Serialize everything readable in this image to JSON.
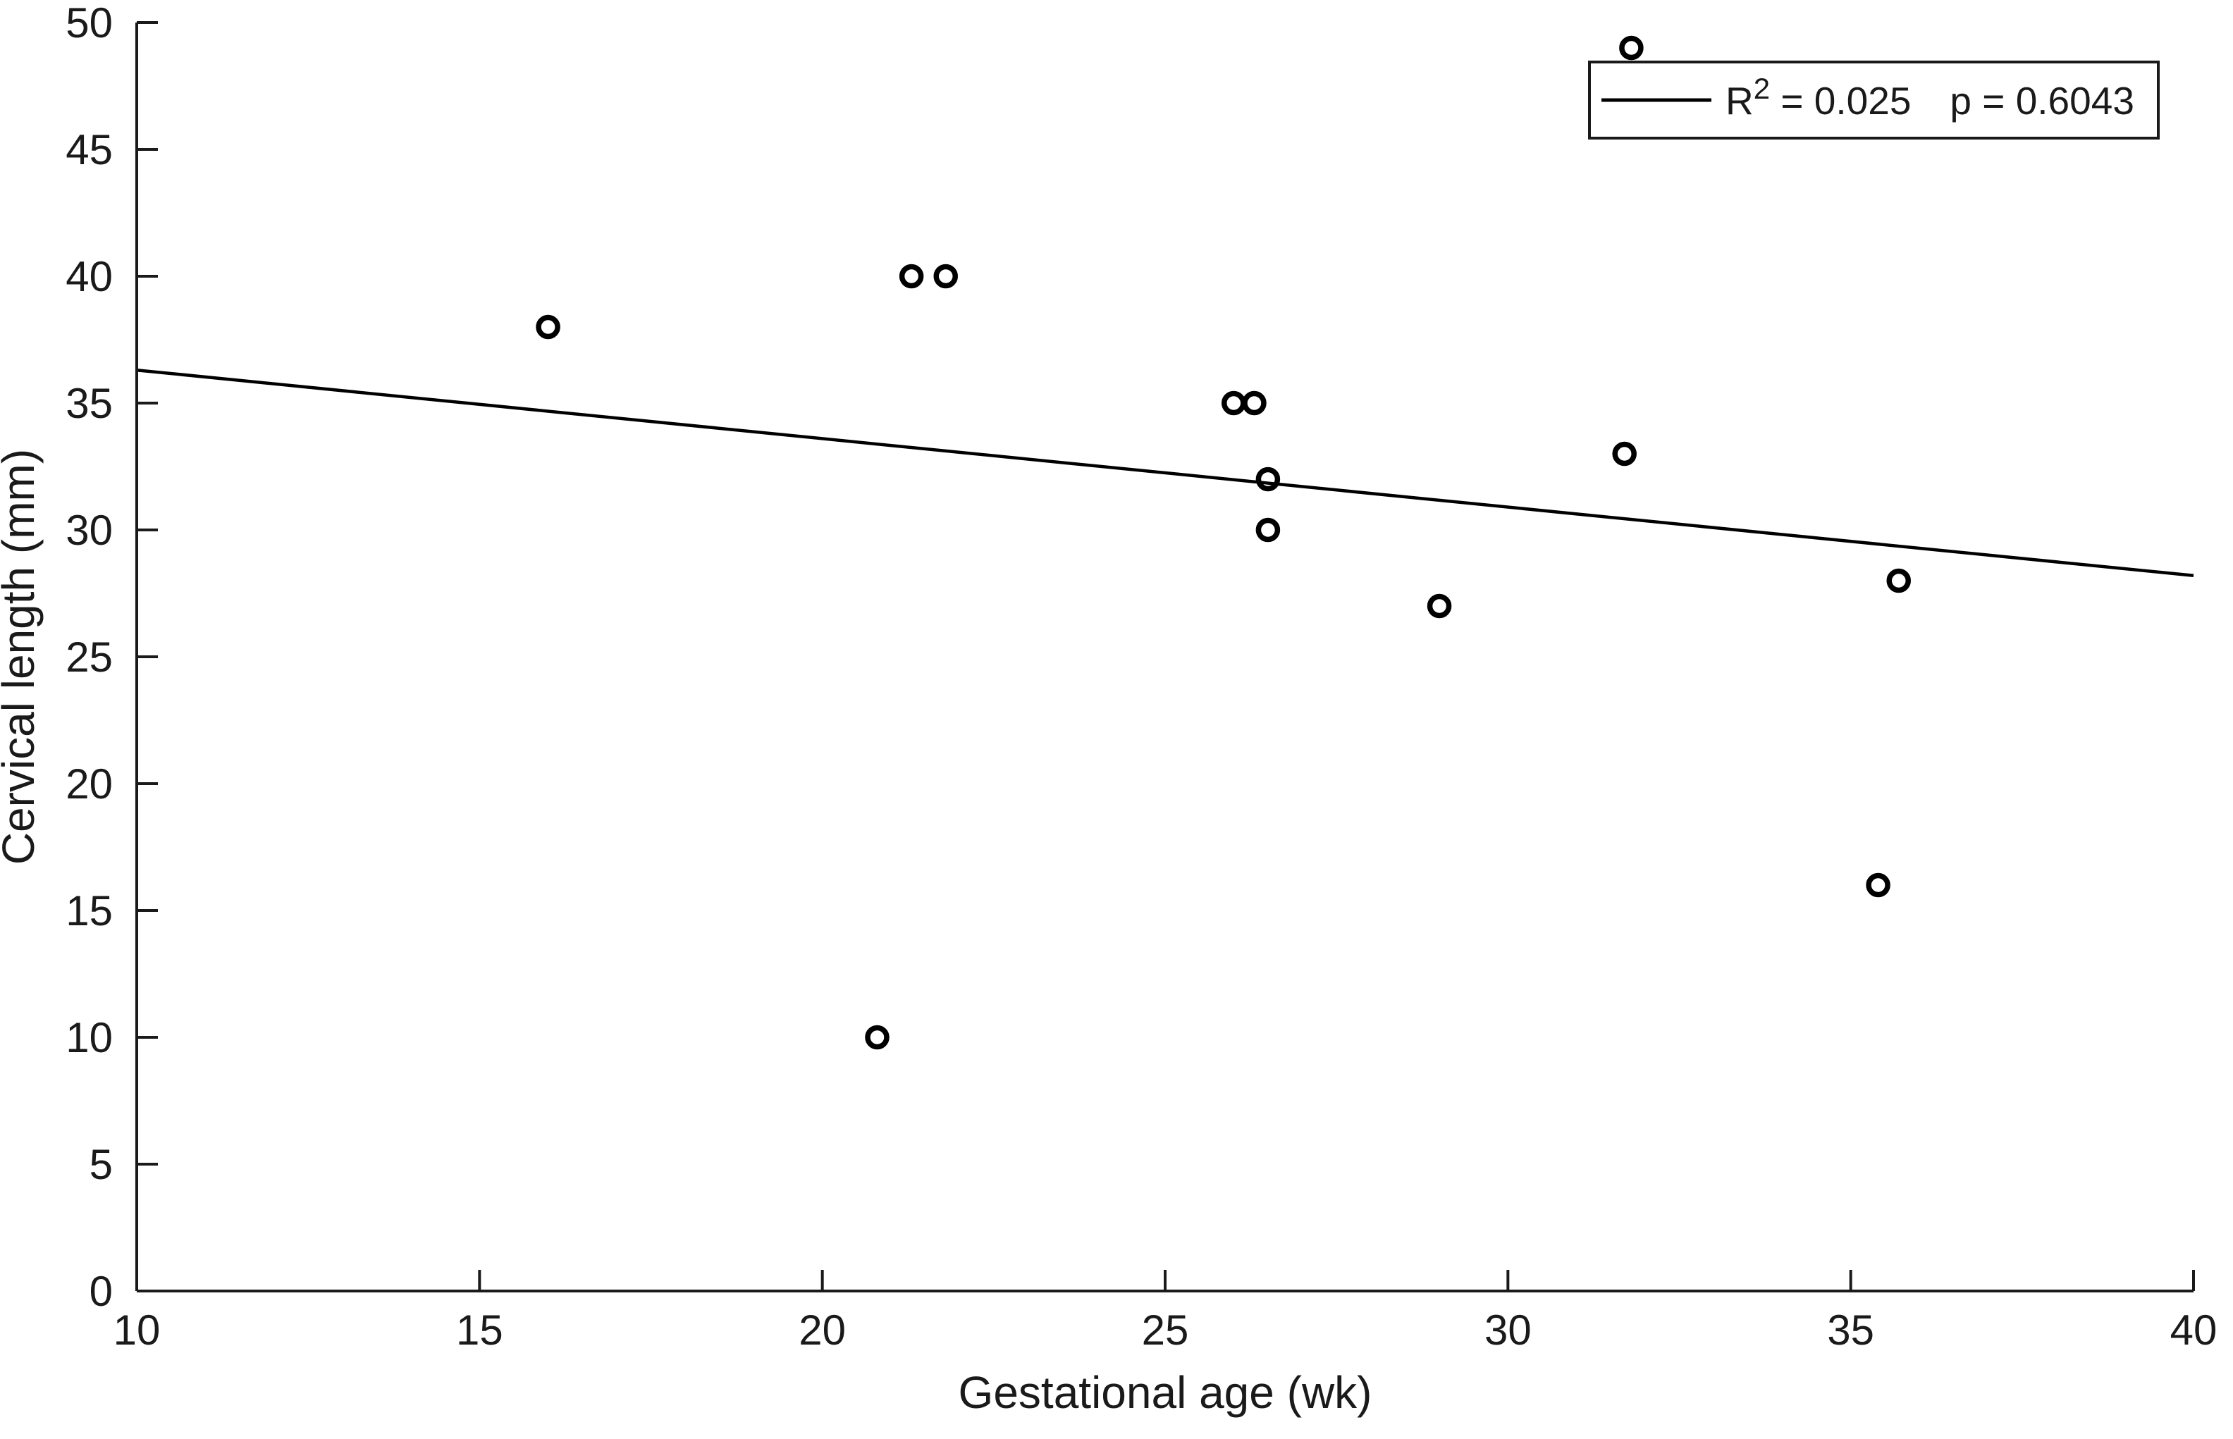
{
  "chart_data": {
    "type": "scatter",
    "title": "",
    "xlabel": "Gestational age (wk)",
    "ylabel": "Cervical length (mm)",
    "xlim": [
      10,
      40
    ],
    "ylim": [
      0,
      50
    ],
    "xticks": [
      10,
      15,
      20,
      25,
      30,
      35,
      40
    ],
    "yticks": [
      0,
      5,
      10,
      15,
      20,
      25,
      30,
      35,
      40,
      45,
      50
    ],
    "grid": false,
    "marker": {
      "shape": "open-circle",
      "color": "#000000"
    },
    "line_color": "#000000",
    "points": [
      {
        "x": 16.0,
        "y": 38
      },
      {
        "x": 20.8,
        "y": 10
      },
      {
        "x": 21.3,
        "y": 40
      },
      {
        "x": 21.8,
        "y": 40
      },
      {
        "x": 26.0,
        "y": 35
      },
      {
        "x": 26.3,
        "y": 35
      },
      {
        "x": 26.5,
        "y": 32
      },
      {
        "x": 26.5,
        "y": 30
      },
      {
        "x": 29.0,
        "y": 27
      },
      {
        "x": 31.7,
        "y": 33
      },
      {
        "x": 31.8,
        "y": 49
      },
      {
        "x": 35.4,
        "y": 16
      },
      {
        "x": 35.7,
        "y": 28
      }
    ],
    "regression_line": {
      "x1": 10,
      "y1": 36.3,
      "x2": 40,
      "y2": 28.2
    },
    "legend": {
      "position": "top-right",
      "r_base": "R",
      "r_sup": "2",
      "r_rest": " = 0.025",
      "p_text": "p = 0.6043"
    }
  },
  "colors": {
    "axis": "#1a1a1a",
    "marker": "#000000",
    "background": "#ffffff"
  }
}
